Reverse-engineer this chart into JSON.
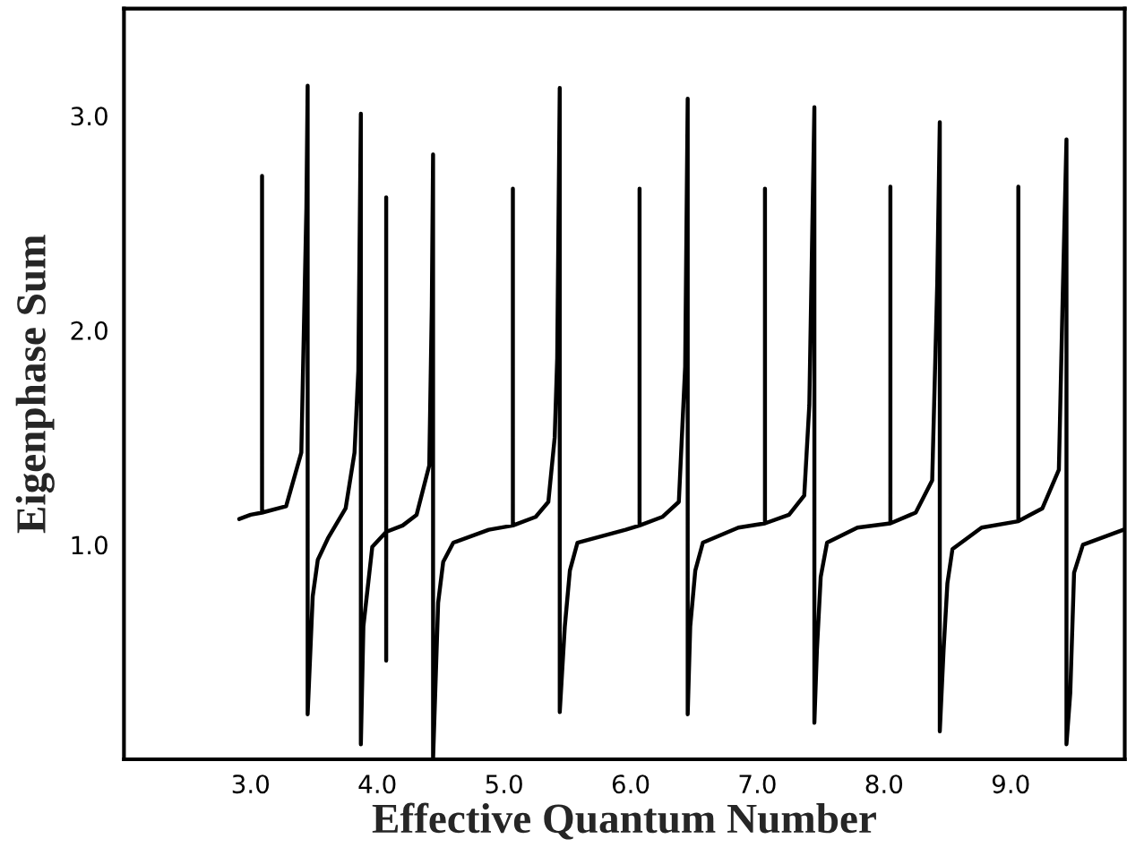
{
  "chart_data": {
    "type": "line",
    "xlabel": "Effective Quantum Number",
    "ylabel": "Eigenphase Sum",
    "xlim": [
      2.0,
      9.9
    ],
    "ylim": [
      0,
      3.5
    ],
    "xticks": [
      {
        "value": 3,
        "label": "3.0"
      },
      {
        "value": 4,
        "label": "4.0"
      },
      {
        "value": 5,
        "label": "5.0"
      },
      {
        "value": 6,
        "label": "6.0"
      },
      {
        "value": 7,
        "label": "7.0"
      },
      {
        "value": 8,
        "label": "8.0"
      },
      {
        "value": 9,
        "label": "9.0"
      }
    ],
    "yticks": [
      {
        "value": 1,
        "label": "1.0"
      },
      {
        "value": 2,
        "label": "2.0"
      },
      {
        "value": 3,
        "label": "3.0"
      }
    ],
    "grid": false,
    "legend": false,
    "marker": "none",
    "line_style": "solid",
    "series": [
      {
        "color": "#000000",
        "x": [
          2.91,
          3.0,
          3.09,
          3.09,
          3.09,
          3.28,
          3.4,
          3.44,
          3.45,
          3.45,
          3.49,
          3.53,
          3.61,
          3.75,
          3.82,
          3.85,
          3.87,
          3.87,
          3.89,
          3.96,
          4.07,
          4.07,
          4.07,
          4.07,
          4.2,
          4.31,
          4.41,
          4.43,
          4.44,
          4.44,
          4.48,
          4.52,
          4.6,
          4.88,
          5.07,
          5.07,
          5.07,
          5.25,
          5.35,
          5.4,
          5.42,
          5.44,
          5.44,
          5.48,
          5.52,
          5.58,
          5.96,
          6.07,
          6.07,
          6.07,
          6.25,
          6.38,
          6.43,
          6.45,
          6.45,
          6.47,
          6.51,
          6.57,
          6.85,
          7.06,
          7.06,
          7.06,
          7.25,
          7.37,
          7.41,
          7.45,
          7.45,
          7.47,
          7.5,
          7.55,
          7.79,
          8.05,
          8.05,
          8.05,
          8.25,
          8.38,
          8.42,
          8.44,
          8.44,
          8.47,
          8.5,
          8.54,
          8.77,
          9.06,
          9.06,
          9.06,
          9.25,
          9.38,
          9.41,
          9.44,
          9.44,
          9.47,
          9.5,
          9.57,
          9.89
        ],
        "values": [
          1.12,
          1.14,
          1.15,
          2.72,
          1.15,
          1.18,
          1.43,
          2.57,
          3.14,
          0.21,
          0.76,
          0.93,
          1.03,
          1.17,
          1.43,
          1.81,
          3.01,
          0.07,
          0.62,
          0.99,
          1.06,
          2.62,
          0.46,
          1.06,
          1.09,
          1.14,
          1.37,
          2.11,
          2.82,
          0.0,
          0.73,
          0.92,
          1.01,
          1.07,
          1.09,
          2.66,
          1.09,
          1.13,
          1.2,
          1.5,
          1.87,
          3.13,
          0.22,
          0.62,
          0.88,
          1.01,
          1.07,
          1.09,
          2.66,
          1.09,
          1.13,
          1.2,
          1.83,
          3.08,
          0.21,
          0.62,
          0.88,
          1.01,
          1.08,
          1.1,
          2.66,
          1.1,
          1.14,
          1.23,
          1.65,
          3.04,
          0.17,
          0.51,
          0.85,
          1.01,
          1.08,
          1.1,
          2.67,
          1.1,
          1.15,
          1.3,
          2.22,
          2.97,
          0.13,
          0.51,
          0.82,
          0.98,
          1.08,
          1.11,
          2.67,
          1.11,
          1.17,
          1.35,
          2.15,
          2.89,
          0.07,
          0.31,
          0.87,
          1.0,
          1.07
        ]
      }
    ]
  }
}
